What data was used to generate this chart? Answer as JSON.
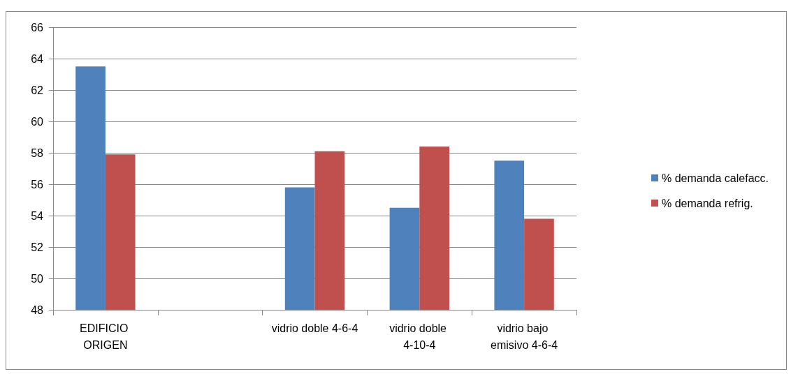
{
  "chart_data": {
    "type": "bar",
    "categories": [
      "EDIFICIO ORIGEN",
      null,
      "vidrio doble 4-6-4",
      "vidrio doble 4-10-4",
      "vidrio bajo emisivo 4-6-4"
    ],
    "series": [
      {
        "name": "% demanda calefacc.",
        "color": "#4f81bd",
        "values": [
          63.5,
          null,
          55.8,
          54.5,
          57.5
        ]
      },
      {
        "name": "% demanda refrig.",
        "color": "#c0504d",
        "values": [
          57.9,
          null,
          58.1,
          58.4,
          53.8
        ]
      }
    ],
    "ylim": [
      48,
      66
    ],
    "yticks": [
      48,
      50,
      52,
      54,
      56,
      58,
      60,
      62,
      64,
      66
    ],
    "grid": "y",
    "legend": "right"
  }
}
